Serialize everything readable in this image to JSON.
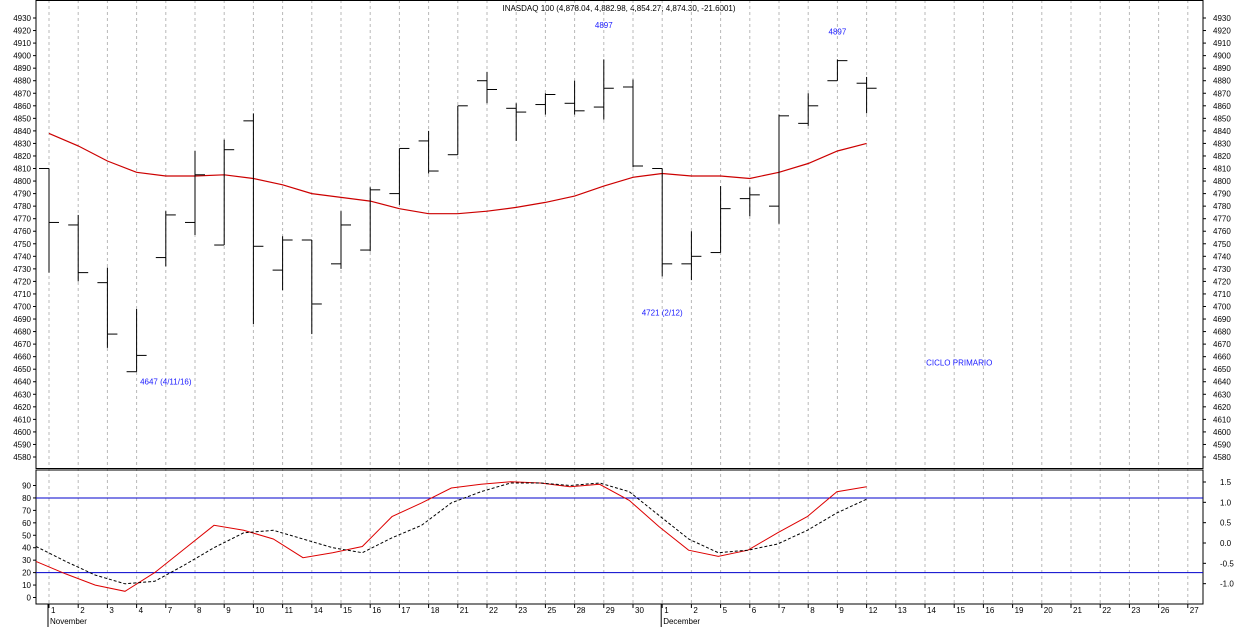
{
  "title": "INASDAQ 100 (4,878.04, 4,882.98, 4,854.27, 4,874.30, -21.6001)",
  "chart_data": [
    {
      "type": "ohlc",
      "y_ticks": [
        4580,
        4590,
        4600,
        4610,
        4620,
        4630,
        4640,
        4650,
        4660,
        4670,
        4680,
        4690,
        4700,
        4710,
        4720,
        4730,
        4740,
        4750,
        4760,
        4770,
        4780,
        4790,
        4800,
        4810,
        4820,
        4830,
        4840,
        4850,
        4860,
        4870,
        4880,
        4890,
        4900,
        4910,
        4920,
        4930
      ],
      "ylim": [
        4572,
        4935
      ],
      "x_labels": [
        "1",
        "2",
        "3",
        "4",
        "7",
        "8",
        "9",
        "10",
        "11",
        "14",
        "15",
        "16",
        "17",
        "18",
        "21",
        "22",
        "23",
        "25",
        "28",
        "29",
        "30",
        "1",
        "2",
        "5",
        "6",
        "7",
        "8",
        "9",
        "12",
        "13",
        "14",
        "15",
        "16",
        "19",
        "20",
        "21",
        "22",
        "23",
        "26",
        "27"
      ],
      "month_labels": [
        {
          "text": "November",
          "index": 0
        },
        {
          "text": "December",
          "index": 21
        }
      ],
      "bars": [
        {
          "x": "1",
          "open": 4810,
          "high": 4810,
          "low": 4727,
          "close": 4767
        },
        {
          "x": "2",
          "open": 4765,
          "high": 4773,
          "low": 4720,
          "close": 4727
        },
        {
          "x": "3",
          "open": 4719,
          "high": 4731,
          "low": 4667,
          "close": 4678
        },
        {
          "x": "4",
          "open": 4648,
          "high": 4698,
          "low": 4648,
          "close": 4661
        },
        {
          "x": "7",
          "open": 4739,
          "high": 4776,
          "low": 4732,
          "close": 4773
        },
        {
          "x": "8",
          "open": 4767,
          "high": 4824,
          "low": 4757,
          "close": 4805
        },
        {
          "x": "9",
          "open": 4749,
          "high": 4833,
          "low": 4749,
          "close": 4825
        },
        {
          "x": "10",
          "open": 4848,
          "high": 4854,
          "low": 4686,
          "close": 4748
        },
        {
          "x": "11",
          "open": 4729,
          "high": 4756,
          "low": 4713,
          "close": 4753
        },
        {
          "x": "14",
          "open": 4753,
          "high": 4753,
          "low": 4678,
          "close": 4702
        },
        {
          "x": "15",
          "open": 4734,
          "high": 4776,
          "low": 4730,
          "close": 4765
        },
        {
          "x": "16",
          "open": 4745,
          "high": 4795,
          "low": 4744,
          "close": 4793
        },
        {
          "x": "17",
          "open": 4790,
          "high": 4826,
          "low": 4781,
          "close": 4826
        },
        {
          "x": "18",
          "open": 4832,
          "high": 4840,
          "low": 4806,
          "close": 4808
        },
        {
          "x": "21",
          "open": 4821,
          "high": 4860,
          "low": 4821,
          "close": 4860
        },
        {
          "x": "22",
          "open": 4880,
          "high": 4887,
          "low": 4862,
          "close": 4873
        },
        {
          "x": "23",
          "open": 4858,
          "high": 4862,
          "low": 4832,
          "close": 4855
        },
        {
          "x": "25",
          "open": 4861,
          "high": 4870,
          "low": 4853,
          "close": 4869
        },
        {
          "x": "28",
          "open": 4862,
          "high": 4880,
          "low": 4853,
          "close": 4856
        },
        {
          "x": "29",
          "open": 4859,
          "high": 4897,
          "low": 4849,
          "close": 4874
        },
        {
          "x": "30",
          "open": 4875,
          "high": 4881,
          "low": 4811,
          "close": 4812
        },
        {
          "x": "1",
          "open": 4810,
          "high": 4810,
          "low": 4724,
          "close": 4734
        },
        {
          "x": "2",
          "open": 4734,
          "high": 4760,
          "low": 4721,
          "close": 4740
        },
        {
          "x": "5",
          "open": 4743,
          "high": 4796,
          "low": 4743,
          "close": 4778
        },
        {
          "x": "6",
          "open": 4786,
          "high": 4795,
          "low": 4772,
          "close": 4789
        },
        {
          "x": "7",
          "open": 4780,
          "high": 4853,
          "low": 4766,
          "close": 4852
        },
        {
          "x": "8",
          "open": 4846,
          "high": 4870,
          "low": 4844,
          "close": 4860
        },
        {
          "x": "9",
          "open": 4880,
          "high": 4897,
          "low": 4880,
          "close": 4896
        },
        {
          "x": "12",
          "open": 4878,
          "high": 4883,
          "low": 4854,
          "close": 4874
        }
      ],
      "moving_average": {
        "color": "#cc0000",
        "values": [
          4838,
          4828,
          4816,
          4807,
          4804,
          4804,
          4805,
          4802,
          4797,
          4790,
          4787,
          4784,
          4778,
          4774,
          4774,
          4776,
          4779,
          4783,
          4788,
          4796,
          4803,
          4806,
          4804,
          4804,
          4802,
          4807,
          4814,
          4824,
          4830
        ]
      },
      "annotations": [
        {
          "text": "4647 (4/11/16)",
          "x_index": 4,
          "y": 4638
        },
        {
          "text": "4897",
          "x_index": 19,
          "y": 4922
        },
        {
          "text": "4897",
          "x_index": 27,
          "y": 4917
        },
        {
          "text": "4721 (2/12)",
          "x_index": 21,
          "y": 4693
        },
        {
          "text": "CICLO PRIMARIO",
          "x_index": 31,
          "y": 4653
        }
      ]
    },
    {
      "type": "line",
      "left_ticks": [
        0,
        10,
        20,
        30,
        40,
        50,
        60,
        70,
        80,
        90
      ],
      "left_ylim": [
        -2,
        100
      ],
      "right_ticks": [
        "1.5",
        "1.0",
        "0.5",
        "0.0",
        "-0.5",
        "-1.0"
      ],
      "right_tick_values": [
        1.5,
        1.0,
        0.5,
        0.0,
        -0.5,
        -1.0
      ],
      "reference_lines": [
        20,
        80
      ],
      "reference_color": "#0000cc",
      "series": [
        {
          "style": "solid",
          "color": "#dd0000",
          "values": [
            29,
            19,
            10,
            5,
            20,
            39,
            58,
            54,
            47,
            32,
            36,
            41,
            65,
            76,
            88,
            91,
            93,
            92,
            89,
            91,
            78,
            57,
            38,
            33,
            38,
            52,
            65,
            85,
            89
          ]
        },
        {
          "style": "dashed",
          "color": "#000000",
          "values": [
            41,
            29,
            18,
            11,
            13,
            26,
            40,
            52,
            54,
            47,
            40,
            36,
            48,
            58,
            76,
            85,
            92,
            92,
            90,
            92,
            85,
            66,
            47,
            36,
            38,
            43,
            54,
            68,
            79
          ]
        }
      ]
    }
  ]
}
